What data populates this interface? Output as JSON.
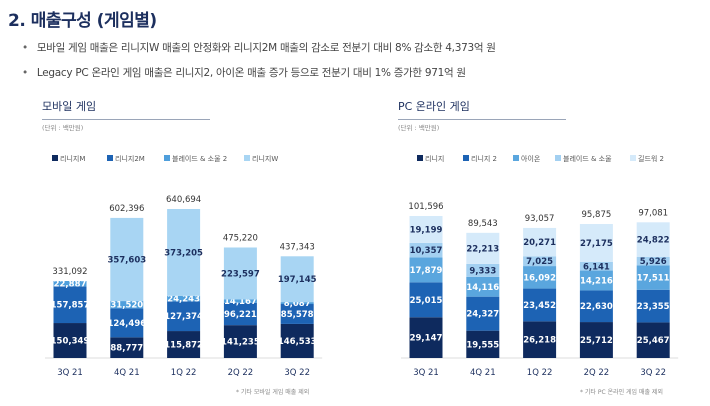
{
  "title": "2. 매출구성 (게임별)",
  "bullets": [
    "모바일 게임 매출은 리니지W 매출의 안정화와 리니지2M 매출의 감소로 전분기 대비 8% 감소한 4,373억 원",
    "Legacy PC 온라인 게임 매출은 리니지2, 아이온 매출 증가 등으로 전분기 대비 1% 증가한 971억 원"
  ],
  "chart_data": [
    {
      "type": "bar",
      "stacked": true,
      "title": "모바일 게임",
      "unit": "(단위 : 백만원)",
      "footnote": "* 기타 모바일 게임 매출 제외",
      "categories": [
        "3Q 21",
        "4Q 21",
        "1Q 22",
        "2Q 22",
        "3Q 22"
      ],
      "totals": [
        "331,092",
        "602,396",
        "640,694",
        "475,220",
        "437,343"
      ],
      "series": [
        {
          "name": "리니지M",
          "color": "#0e2a5e",
          "values": [
            150349,
            88777,
            115872,
            141235,
            146533
          ]
        },
        {
          "name": "리니지2M",
          "color": "#1d63b4",
          "values": [
            157857,
            124496,
            127374,
            96221,
            85578
          ]
        },
        {
          "name": "블레이드 & 소울 2",
          "color": "#4f9fdc",
          "values": [
            22887,
            31520,
            24243,
            14167,
            8087
          ]
        },
        {
          "name": "리니지W",
          "color": "#a8d5f3",
          "values": [
            null,
            357603,
            373205,
            223597,
            197145
          ]
        }
      ],
      "legend": "top",
      "grid": false
    },
    {
      "type": "bar",
      "stacked": true,
      "title": "PC 온라인 게임",
      "unit": "(단위 : 백만원)",
      "footnote": "* 기타 PC 온라인 게임 매출 제외",
      "categories": [
        "3Q 21",
        "4Q 21",
        "1Q 22",
        "2Q 22",
        "3Q 22"
      ],
      "totals": [
        "101,596",
        "89,543",
        "93,057",
        "95,875",
        "97,081"
      ],
      "series": [
        {
          "name": "리니지",
          "color": "#0e2a5e",
          "values": [
            29147,
            19555,
            26218,
            25712,
            25467
          ]
        },
        {
          "name": "리니지 2",
          "color": "#1d63b4",
          "values": [
            25015,
            24327,
            23452,
            22630,
            23355
          ]
        },
        {
          "name": "아이온",
          "color": "#5aa6de",
          "values": [
            17879,
            14116,
            16092,
            14216,
            17511
          ]
        },
        {
          "name": "블레이드 & 소울",
          "color": "#a3d0f1",
          "values": [
            10357,
            9333,
            7025,
            6141,
            5926
          ]
        },
        {
          "name": "길드워 2",
          "color": "#d5eafa",
          "values": [
            19199,
            22213,
            20271,
            27175,
            24822
          ]
        }
      ],
      "legend": "top",
      "grid": false
    }
  ]
}
